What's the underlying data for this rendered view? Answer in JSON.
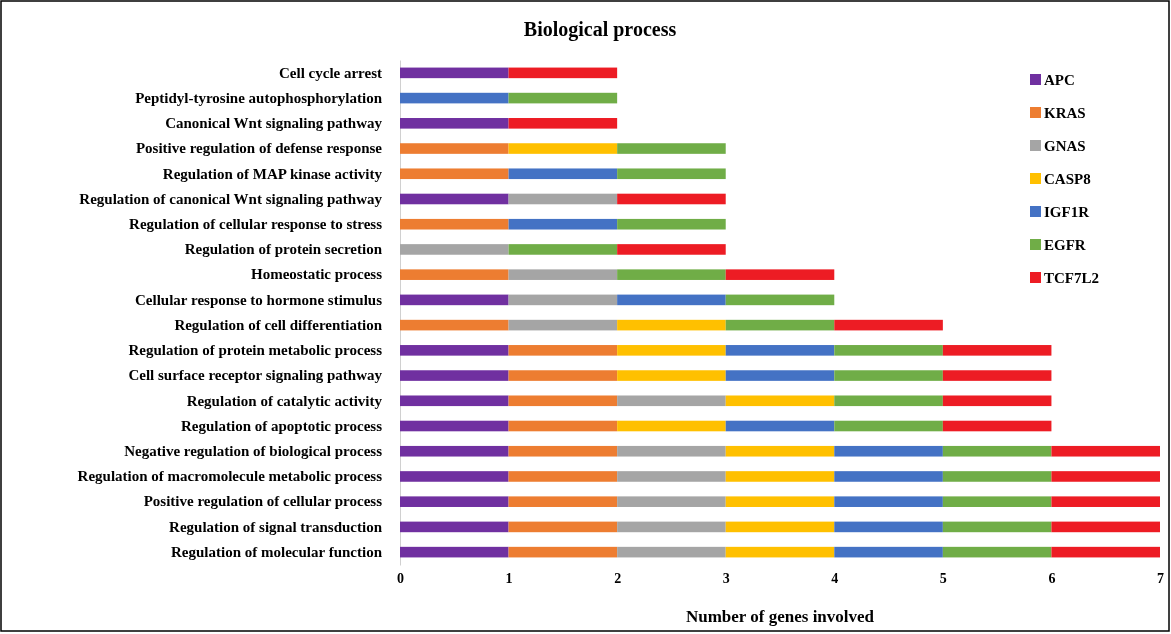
{
  "chart_data": {
    "type": "bar",
    "orientation": "horizontal",
    "stacked": true,
    "title": "Biological process",
    "xlabel": "Number of genes involved",
    "legend": "top right",
    "grid": false,
    "categories": [
      "Cell cycle arrest",
      "Peptidyl-tyrosine autophosphorylation",
      "Canonical Wnt signaling pathway",
      "Positive regulation of defense response",
      "Regulation of MAP kinase activity",
      "Regulation of canonical Wnt signaling pathway",
      "Regulation of cellular response to stress",
      "Regulation of protein secretion",
      "Homeostatic process",
      "Cellular response to hormone stimulus",
      "Regulation of cell differentiation",
      "Regulation of protein metabolic process",
      "Cell surface receptor signaling pathway",
      "Regulation of catalytic activity",
      "Regulation of apoptotic process",
      "Negative regulation of biological process",
      "Regulation of macromolecule metabolic process",
      "Positive regulation of cellular process",
      "Regulation of signal transduction",
      "Regulation of molecular function"
    ],
    "xlim": [
      0,
      7
    ],
    "xticks": [
      0,
      1,
      2,
      3,
      4,
      5,
      6,
      7
    ],
    "series": [
      {
        "name": "APC",
        "color": "#7030a0",
        "values": [
          1,
          0,
          1,
          0,
          0,
          1,
          0,
          0,
          0,
          1,
          0,
          1,
          1,
          1,
          1,
          1,
          1,
          1,
          1,
          1
        ]
      },
      {
        "name": "KRAS",
        "color": "#ed7d31",
        "values": [
          0,
          0,
          0,
          1,
          1,
          0,
          1,
          0,
          1,
          0,
          1,
          1,
          1,
          1,
          1,
          1,
          1,
          1,
          1,
          1
        ]
      },
      {
        "name": "GNAS",
        "color": "#a5a5a5",
        "values": [
          0,
          0,
          0,
          0,
          0,
          1,
          0,
          1,
          1,
          1,
          1,
          0,
          0,
          1,
          0,
          1,
          1,
          1,
          1,
          1
        ]
      },
      {
        "name": "CASP8",
        "color": "#ffc000",
        "values": [
          0,
          0,
          0,
          1,
          0,
          0,
          0,
          0,
          0,
          0,
          1,
          1,
          1,
          1,
          1,
          1,
          1,
          1,
          1,
          1
        ]
      },
      {
        "name": "IGF1R",
        "color": "#4472c4",
        "values": [
          0,
          1,
          0,
          0,
          1,
          0,
          1,
          0,
          0,
          1,
          0,
          1,
          1,
          0,
          1,
          1,
          1,
          1,
          1,
          1
        ]
      },
      {
        "name": "EGFR",
        "color": "#70ad47",
        "values": [
          0,
          1,
          0,
          1,
          1,
          0,
          1,
          1,
          1,
          1,
          1,
          1,
          1,
          1,
          1,
          1,
          1,
          1,
          1,
          1
        ]
      },
      {
        "name": "TCF7L2",
        "color": "#ed1c24",
        "values": [
          1,
          0,
          1,
          0,
          0,
          1,
          0,
          1,
          1,
          0,
          1,
          1,
          1,
          1,
          1,
          1,
          1,
          1,
          1,
          1
        ]
      }
    ]
  }
}
